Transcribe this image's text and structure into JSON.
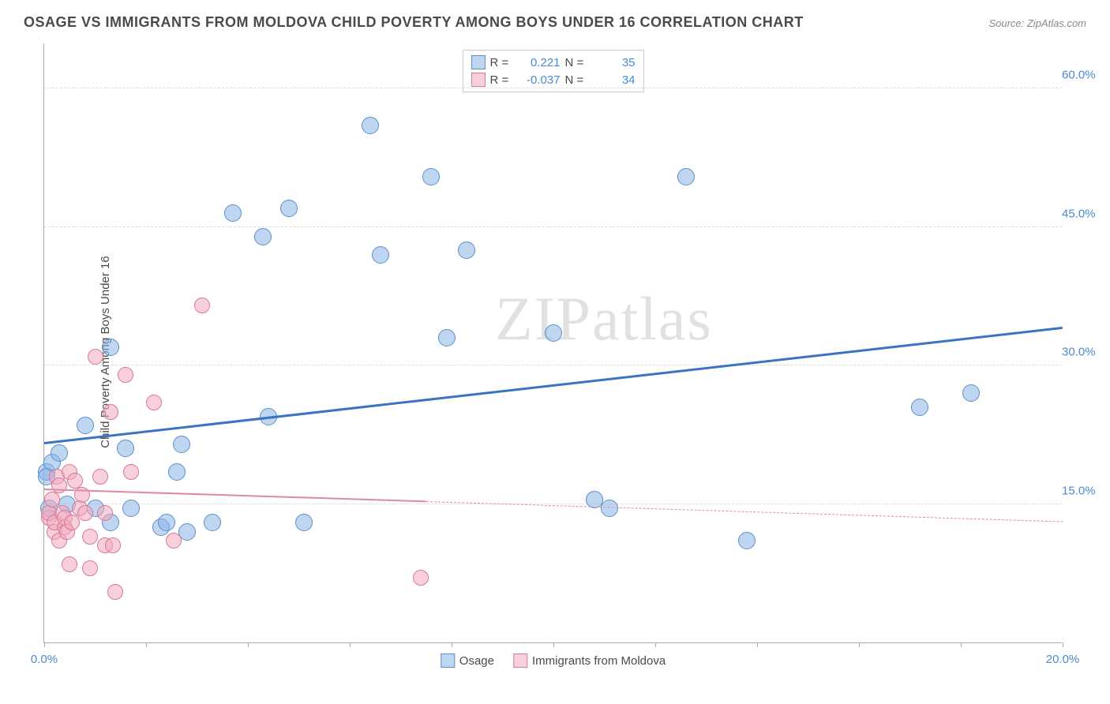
{
  "title": "OSAGE VS IMMIGRANTS FROM MOLDOVA CHILD POVERTY AMONG BOYS UNDER 16 CORRELATION CHART",
  "source": "Source: ZipAtlas.com",
  "ylabel": "Child Poverty Among Boys Under 16",
  "watermark": "ZIPatlas",
  "chart": {
    "type": "scatter",
    "background_color": "#ffffff",
    "grid_color": "#dddddd",
    "axis_color": "#aaaaaa",
    "xlim": [
      0,
      20
    ],
    "ylim": [
      0,
      65
    ],
    "x_ticks": [
      0,
      2,
      4,
      6,
      8,
      10,
      12,
      14,
      16,
      18,
      20
    ],
    "x_tick_labels": {
      "0": "0.0%",
      "20": "20.0%"
    },
    "x_tick_color": "#4a8ad4",
    "y_ticks": [
      15,
      30,
      45,
      60
    ],
    "y_tick_labels": {
      "15": "15.0%",
      "30": "30.0%",
      "45": "45.0%",
      "60": "60.0%"
    },
    "y_tick_color": "#4a8ad4",
    "label_fontsize": 15,
    "title_fontsize": 18,
    "series": [
      {
        "name": "Osage",
        "marker_fill": "rgba(138,180,230,0.55)",
        "marker_stroke": "#5a8fc9",
        "marker_radius": 11,
        "trend_color": "#3a73c2",
        "trend_width": 3,
        "trend_style": "solid",
        "trend": {
          "x1": 0,
          "y1": 21.5,
          "x2": 20,
          "y2": 34
        },
        "R": "0.221",
        "N": "35",
        "points": [
          [
            0.05,
            18.5
          ],
          [
            0.05,
            18
          ],
          [
            0.15,
            19.5
          ],
          [
            0.1,
            14.5
          ],
          [
            0.3,
            20.5
          ],
          [
            0.45,
            15
          ],
          [
            0.8,
            23.5
          ],
          [
            1.0,
            14.5
          ],
          [
            1.3,
            13
          ],
          [
            1.3,
            32
          ],
          [
            1.6,
            21
          ],
          [
            1.7,
            14.5
          ],
          [
            2.3,
            12.5
          ],
          [
            2.4,
            13
          ],
          [
            2.7,
            21.5
          ],
          [
            2.6,
            18.5
          ],
          [
            2.8,
            12
          ],
          [
            3.3,
            13
          ],
          [
            3.7,
            46.5
          ],
          [
            4.3,
            44
          ],
          [
            4.4,
            24.5
          ],
          [
            4.8,
            47
          ],
          [
            5.1,
            13
          ],
          [
            6.4,
            56
          ],
          [
            6.6,
            42
          ],
          [
            7.6,
            50.5
          ],
          [
            7.9,
            33
          ],
          [
            8.3,
            42.5
          ],
          [
            10.0,
            33.5
          ],
          [
            10.8,
            15.5
          ],
          [
            11.1,
            14.5
          ],
          [
            12.6,
            50.5
          ],
          [
            13.8,
            11
          ],
          [
            17.2,
            25.5
          ],
          [
            18.2,
            27
          ]
        ]
      },
      {
        "name": "Immigrants from Moldova",
        "marker_fill": "rgba(240,170,190,0.55)",
        "marker_stroke": "#d77a96",
        "marker_radius": 10,
        "trend_color": "#e089a2",
        "trend_width": 2,
        "trend_style": "solid",
        "trend_dash_after": 7.5,
        "trend": {
          "x1": 0,
          "y1": 16.5,
          "x2": 20,
          "y2": 13
        },
        "R": "-0.037",
        "N": "34",
        "points": [
          [
            0.1,
            13.5
          ],
          [
            0.1,
            14
          ],
          [
            0.15,
            15.5
          ],
          [
            0.2,
            12
          ],
          [
            0.2,
            13
          ],
          [
            0.25,
            18
          ],
          [
            0.3,
            11
          ],
          [
            0.3,
            17
          ],
          [
            0.35,
            14
          ],
          [
            0.4,
            12.5
          ],
          [
            0.4,
            13.5
          ],
          [
            0.45,
            12
          ],
          [
            0.5,
            18.5
          ],
          [
            0.5,
            8.5
          ],
          [
            0.55,
            13
          ],
          [
            0.6,
            17.5
          ],
          [
            0.7,
            14.5
          ],
          [
            0.75,
            16
          ],
          [
            0.8,
            14
          ],
          [
            0.9,
            11.5
          ],
          [
            0.9,
            8
          ],
          [
            1.0,
            31
          ],
          [
            1.1,
            18
          ],
          [
            1.2,
            10.5
          ],
          [
            1.2,
            14
          ],
          [
            1.3,
            25
          ],
          [
            1.35,
            10.5
          ],
          [
            1.4,
            5.5
          ],
          [
            1.6,
            29
          ],
          [
            1.7,
            18.5
          ],
          [
            2.15,
            26
          ],
          [
            2.55,
            11
          ],
          [
            3.1,
            36.5
          ],
          [
            7.4,
            7
          ]
        ]
      }
    ],
    "legend_top": {
      "border_color": "#cccccc",
      "r_label": "R =",
      "n_label": "N =",
      "value_color": "#4a8ad4"
    },
    "legend_bottom": {
      "items": [
        "Osage",
        "Immigrants from Moldova"
      ]
    }
  }
}
